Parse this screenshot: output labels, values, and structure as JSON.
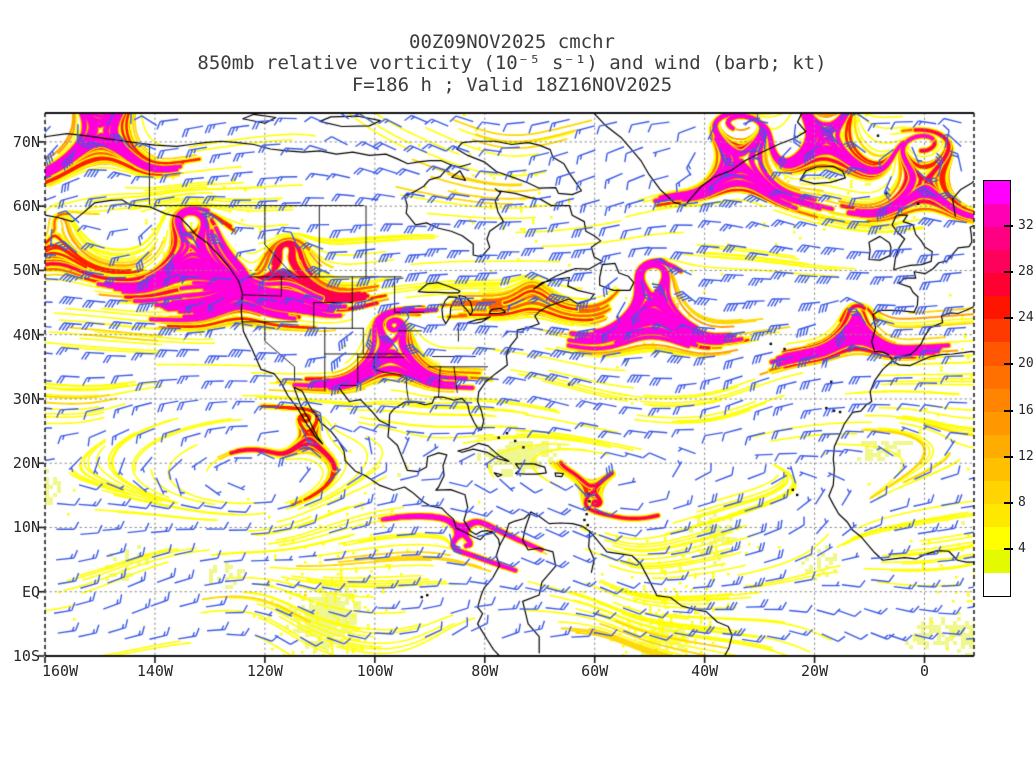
{
  "title": {
    "line1": "00Z09NOV2025 cmchr",
    "line2": "850mb relative vorticity (10⁻⁵ s⁻¹) and wind (barb; kt)",
    "line3": "F=186 h ; Valid 18Z16NOV2025"
  },
  "chart_data": {
    "type": "heatmap",
    "title": "850mb relative vorticity (10⁻⁵ s⁻¹) and wind (barb; kt)",
    "model": "cmchr",
    "run": "00Z09NOV2025",
    "forecast": "F=186 h",
    "valid_time": "18Z16NOV2025",
    "level": "850mb",
    "field": "relative vorticity",
    "field_units": "10⁻⁵ s⁻¹",
    "wind_units": "kt",
    "projection": "equidistant cylindrical",
    "lon_min": -160,
    "lon_max": 9,
    "lat_min": -10,
    "lat_max": 74.5,
    "grid": true,
    "grid_interval": {
      "lat": 10,
      "lon": 20
    },
    "x_ticks": [
      {
        "label": "160W",
        "lon": -160
      },
      {
        "label": "140W",
        "lon": -140
      },
      {
        "label": "120W",
        "lon": -120
      },
      {
        "label": "100W",
        "lon": -100
      },
      {
        "label": "80W",
        "lon": -80
      },
      {
        "label": "60W",
        "lon": -60
      },
      {
        "label": "40W",
        "lon": -40
      },
      {
        "label": "20W",
        "lon": -20
      },
      {
        "label": "0",
        "lon": 0
      }
    ],
    "y_ticks": [
      {
        "label": "70N",
        "lat": 70
      },
      {
        "label": "60N",
        "lat": 60
      },
      {
        "label": "50N",
        "lat": 50
      },
      {
        "label": "40N",
        "lat": 40
      },
      {
        "label": "30N",
        "lat": 30
      },
      {
        "label": "20N",
        "lat": 20
      },
      {
        "label": "10N",
        "lat": 10
      },
      {
        "label": "EQ",
        "lat": 0
      },
      {
        "label": "10S",
        "lat": -10
      }
    ],
    "colorbar": {
      "position": "right",
      "interval": 2,
      "tick_labels": [
        4,
        8,
        12,
        16,
        20,
        24,
        28,
        32
      ],
      "colors_bottom_to_top": [
        "#FFFFFF",
        "#E3FA00",
        "#FFFF00",
        "#FFE800",
        "#FFD400",
        "#FFC000",
        "#FFAC00",
        "#FF9800",
        "#FF8400",
        "#FF7000",
        "#FF5800",
        "#FF3A00",
        "#FF1400",
        "#FF0032",
        "#FF005A",
        "#FF0082",
        "#FF00B4",
        "#FF00FF"
      ]
    },
    "vorticity_maxima": [
      {
        "lon": -97.3,
        "lat": 37.0,
        "r": 24,
        "s": 1.0
      },
      {
        "lon": -124.5,
        "lat": 45.5,
        "r": 24,
        "s": 0.95
      },
      {
        "lon": -116.0,
        "lat": 48.5,
        "r": 28,
        "s": 0.72
      },
      {
        "lon": -133.0,
        "lat": 51.5,
        "r": 30,
        "s": 0.85
      },
      {
        "lon": -158.5,
        "lat": 53.0,
        "r": 26,
        "s": 0.6
      },
      {
        "lon": -49.5,
        "lat": 43.5,
        "r": 30,
        "s": 1.0
      },
      {
        "lon": -33.5,
        "lat": 66.5,
        "r": 24,
        "s": 0.95
      },
      {
        "lon": -18.0,
        "lat": 70.0,
        "r": 24,
        "s": 0.95
      },
      {
        "lon": -12.5,
        "lat": 40.5,
        "r": 20,
        "s": 0.85
      },
      {
        "lon": 0.0,
        "lat": 63.0,
        "r": 26,
        "s": 0.78
      },
      {
        "lon": -84.3,
        "lat": 9.4,
        "r": 8,
        "s": 0.9
      },
      {
        "lon": -60.5,
        "lat": 16.0,
        "r": 10,
        "s": 0.5
      },
      {
        "lon": -112.0,
        "lat": 24.0,
        "r": 14,
        "s": 0.5
      },
      {
        "lon": -71.0,
        "lat": 45.5,
        "r": 18,
        "s": 0.55
      },
      {
        "lon": -150.0,
        "lat": 71.0,
        "r": 30,
        "s": 0.68
      }
    ],
    "style": {
      "wind_barb_color": "#3C5AE6",
      "coastline_color": "#000000",
      "gridline_color": "#8A8A8A",
      "background": "#FFFFFF",
      "speckle_yellow": "#FFFF00",
      "speckle_gold": "#FFD000",
      "speckle_orange": "#FF7800",
      "speckle_red": "#FF2800",
      "pale_patch": "rgba(222,238,0,0.45)"
    }
  }
}
